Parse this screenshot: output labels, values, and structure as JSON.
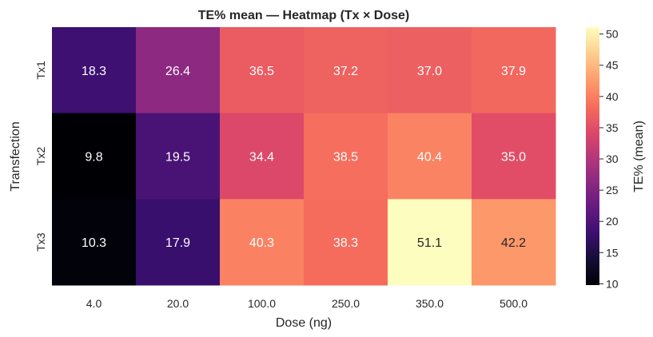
{
  "chart_data": {
    "type": "heatmap",
    "title": "TE% mean — Heatmap (Tx × Dose)",
    "xlabel": "Dose (ng)",
    "ylabel": "Transfection",
    "x_categories": [
      "4.0",
      "20.0",
      "100.0",
      "250.0",
      "350.0",
      "500.0"
    ],
    "y_categories": [
      "Tx1",
      "Tx2",
      "Tx3"
    ],
    "values": [
      [
        18.3,
        26.4,
        36.5,
        37.2,
        37.0,
        37.9
      ],
      [
        9.8,
        19.5,
        34.4,
        38.5,
        40.4,
        35.0
      ],
      [
        10.3,
        17.9,
        40.3,
        38.3,
        51.1,
        42.2
      ]
    ],
    "value_labels": [
      [
        "18.3",
        "26.4",
        "36.5",
        "37.2",
        "37.0",
        "37.9"
      ],
      [
        "9.8",
        "19.5",
        "34.4",
        "38.5",
        "40.4",
        "35.0"
      ],
      [
        "10.3",
        "17.9",
        "40.3",
        "38.3",
        "51.1",
        "42.2"
      ]
    ],
    "colormap": "magma",
    "vmin": 9.8,
    "vmax": 51.1,
    "colorbar": {
      "label": "TE% (mean)",
      "ticks": [
        10,
        15,
        20,
        25,
        30,
        35,
        40,
        45,
        50
      ],
      "tick_labels": [
        "10",
        "15",
        "20",
        "25",
        "30",
        "35",
        "40",
        "45",
        "50"
      ],
      "placement": "right"
    },
    "grid": false
  }
}
